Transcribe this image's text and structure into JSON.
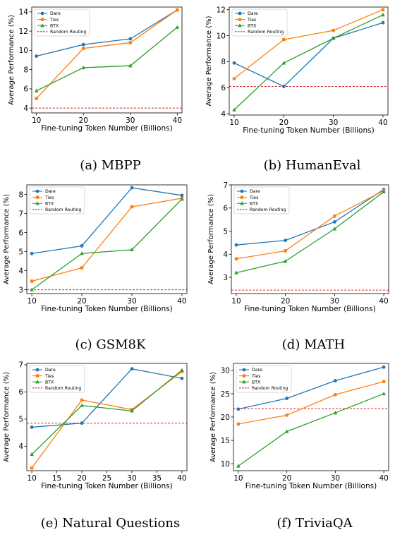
{
  "figure": {
    "captions": [
      "(a) MBPP",
      "(b) HumanEval",
      "(c) GSM8K",
      "(d) MATH",
      "(e) Natural Questions",
      "(f) TriviaQA"
    ]
  },
  "colors": {
    "dare": "#1f77b4",
    "ties": "#ff7f0e",
    "btx": "#2ca02c",
    "random": "#d62728"
  },
  "chart_data": [
    {
      "type": "line",
      "caption": "(a) MBPP",
      "xlabel": "Fine-tuning Token Number (Billions)",
      "ylabel": "Average Performance (%)",
      "x": [
        10,
        20,
        30,
        40
      ],
      "xticks": [
        10,
        20,
        30,
        40
      ],
      "xlim": [
        9,
        41
      ],
      "ylim": [
        3.5,
        14.5
      ],
      "yticks": [
        4,
        6,
        8,
        10,
        12,
        14
      ],
      "legend": "top-left",
      "grid": false,
      "series": [
        {
          "name": "Dare",
          "marker": "circle",
          "values": [
            9.4,
            10.6,
            11.2,
            14.2
          ]
        },
        {
          "name": "Ties",
          "marker": "square",
          "values": [
            5.0,
            10.2,
            10.8,
            14.2
          ]
        },
        {
          "name": "BTX",
          "marker": "triangle",
          "values": [
            5.8,
            8.2,
            8.4,
            12.4
          ]
        }
      ],
      "reference": {
        "name": "Random Routing",
        "value": 4.0
      }
    },
    {
      "type": "line",
      "caption": "(b) HumanEval",
      "xlabel": "Fine-tuning Token Number (Billions)",
      "ylabel": "Average Performance (%)",
      "x": [
        10,
        20,
        30,
        40
      ],
      "xticks": [
        10,
        20,
        30,
        40
      ],
      "xlim": [
        9,
        41
      ],
      "ylim": [
        3.9,
        12.2
      ],
      "yticks": [
        4,
        6,
        8,
        10,
        12
      ],
      "legend": "top-left",
      "grid": false,
      "series": [
        {
          "name": "Dare",
          "marker": "circle",
          "values": [
            7.9,
            6.1,
            9.8,
            11.0
          ]
        },
        {
          "name": "Ties",
          "marker": "square",
          "values": [
            6.7,
            9.7,
            10.4,
            12.0
          ]
        },
        {
          "name": "BTX",
          "marker": "triangle",
          "values": [
            4.3,
            7.9,
            9.8,
            11.6
          ]
        }
      ],
      "reference": {
        "name": "Random Routing",
        "value": 6.1
      }
    },
    {
      "type": "line",
      "caption": "(c) GSM8K",
      "xlabel": "Fine-tuning Token Number (Billions)",
      "ylabel": "Average Performance (%)",
      "x": [
        10,
        20,
        30,
        40
      ],
      "xticks": [
        10,
        20,
        30,
        40
      ],
      "xlim": [
        9,
        41
      ],
      "ylim": [
        2.8,
        8.5
      ],
      "yticks": [
        3,
        4,
        5,
        6,
        7,
        8
      ],
      "legend": "top-left",
      "grid": false,
      "series": [
        {
          "name": "Dare",
          "marker": "circle",
          "values": [
            4.9,
            5.3,
            8.35,
            7.95
          ]
        },
        {
          "name": "Ties",
          "marker": "square",
          "values": [
            3.45,
            4.15,
            7.35,
            7.8
          ]
        },
        {
          "name": "BTX",
          "marker": "triangle",
          "values": [
            3.0,
            4.9,
            5.1,
            7.75
          ]
        }
      ],
      "reference": {
        "name": "Random Routing",
        "value": 3.0
      }
    },
    {
      "type": "line",
      "caption": "(d) MATH",
      "xlabel": "Fine-tuning Token Number (Billions)",
      "ylabel": "Average Performance (%)",
      "x": [
        10,
        20,
        30,
        40
      ],
      "xticks": [
        10,
        20,
        30,
        40
      ],
      "xlim": [
        9,
        41
      ],
      "ylim": [
        2.3,
        7.0
      ],
      "yticks": [
        3,
        4,
        5,
        6,
        7
      ],
      "legend": "top-left",
      "grid": false,
      "series": [
        {
          "name": "Dare",
          "marker": "circle",
          "values": [
            4.4,
            4.6,
            5.4,
            6.8
          ]
        },
        {
          "name": "Ties",
          "marker": "square",
          "values": [
            3.8,
            4.15,
            5.65,
            6.75
          ]
        },
        {
          "name": "BTX",
          "marker": "triangle",
          "values": [
            3.2,
            3.7,
            5.1,
            6.7
          ]
        }
      ],
      "reference": {
        "name": "Random Routing",
        "value": 2.45
      }
    },
    {
      "type": "line",
      "caption": "(e) Natural Questions",
      "xlabel": "Fine-tuning Token Number (Billions)",
      "ylabel": "Average Performance (%)",
      "x": [
        10,
        20,
        30,
        40
      ],
      "xticks": [
        10,
        15,
        20,
        25,
        30,
        35,
        40
      ],
      "xlim": [
        9,
        41
      ],
      "ylim": [
        3.1,
        7.05
      ],
      "yticks": [
        4,
        5,
        6,
        7
      ],
      "legend": "top-left",
      "grid": false,
      "series": [
        {
          "name": "Dare",
          "marker": "circle",
          "values": [
            4.7,
            4.85,
            6.85,
            6.5
          ]
        },
        {
          "name": "Ties",
          "marker": "square",
          "values": [
            3.2,
            5.7,
            5.35,
            6.75
          ]
        },
        {
          "name": "BTX",
          "marker": "triangle",
          "values": [
            3.7,
            5.5,
            5.3,
            6.8
          ]
        }
      ],
      "reference": {
        "name": "Random Routing",
        "value": 4.85
      }
    },
    {
      "type": "line",
      "caption": "(f) TriviaQA",
      "xlabel": "Fine-tuning Token Number (Billions)",
      "ylabel": "Average Performance (%)",
      "x": [
        10,
        20,
        30,
        40
      ],
      "xticks": [
        10,
        20,
        30,
        40
      ],
      "xlim": [
        9,
        41
      ],
      "ylim": [
        8.5,
        31.5
      ],
      "yticks": [
        10,
        15,
        20,
        25,
        30
      ],
      "legend": "top-left",
      "grid": false,
      "series": [
        {
          "name": "Dare",
          "marker": "circle",
          "values": [
            21.7,
            24.0,
            27.8,
            30.7
          ]
        },
        {
          "name": "Ties",
          "marker": "square",
          "values": [
            18.5,
            20.4,
            24.8,
            27.6
          ]
        },
        {
          "name": "BTX",
          "marker": "triangle",
          "values": [
            9.5,
            16.9,
            20.9,
            25.0
          ]
        }
      ],
      "reference": {
        "name": "Random Routing",
        "value": 21.8
      }
    }
  ]
}
